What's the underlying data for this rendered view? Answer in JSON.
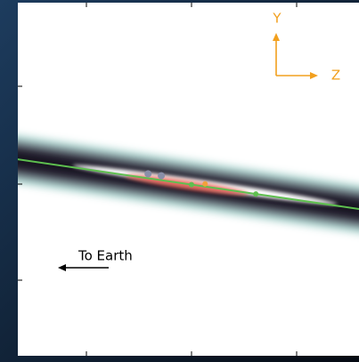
{
  "labels": {
    "axis_y": "Y",
    "axis_z": "Z",
    "direction": "To Earth"
  }
}
